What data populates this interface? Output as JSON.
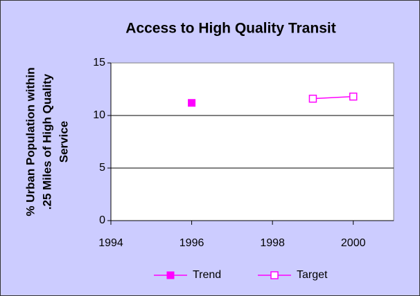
{
  "chart_data": {
    "type": "line",
    "title": "Access to High Quality Transit",
    "ylabel": [
      "% Urban Population within",
      ".25 Miles of High Quality",
      "Service"
    ],
    "series": [
      {
        "name": "Trend",
        "color": "#ff00ff",
        "marker": "filled-square",
        "x": [
          1996
        ],
        "values": [
          11.2
        ]
      },
      {
        "name": "Target",
        "color": "#ff00ff",
        "marker": "open-square",
        "x": [
          1999,
          2000
        ],
        "values": [
          11.6,
          11.8
        ]
      }
    ],
    "xlim": [
      1994,
      2001
    ],
    "xticks": [
      1994,
      1996,
      1998,
      2000
    ],
    "ylim": [
      0,
      15
    ],
    "yticks": [
      0,
      5,
      10,
      15
    ],
    "grid": true,
    "legend": "bottom"
  }
}
